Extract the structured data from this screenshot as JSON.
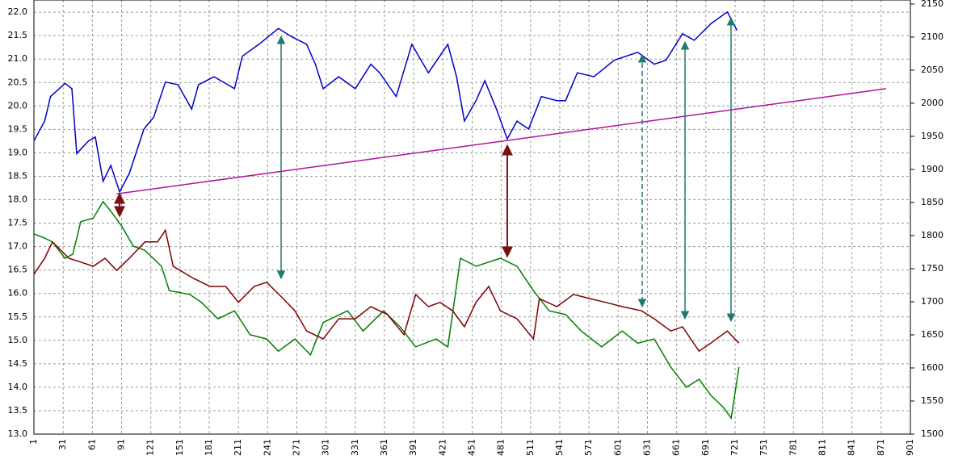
{
  "chart_data": {
    "type": "line",
    "xlim": [
      1,
      901
    ],
    "xticks": [
      1,
      31,
      61,
      91,
      121,
      151,
      181,
      211,
      241,
      271,
      301,
      331,
      361,
      391,
      421,
      451,
      481,
      511,
      541,
      571,
      601,
      631,
      661,
      691,
      721,
      751,
      781,
      811,
      841,
      871,
      901
    ],
    "ylim": [
      13,
      22.26
    ],
    "yticks": [
      {
        "value": 13,
        "label": "13.0"
      },
      13.5,
      {
        "value": 14,
        "label": "14.0"
      },
      14.5,
      {
        "value": 15,
        "label": "15.0"
      },
      15.5,
      {
        "value": 16,
        "label": "16.0"
      },
      16.5,
      {
        "value": 17,
        "label": "17.0"
      },
      17.5,
      {
        "value": 18,
        "label": "18.0"
      },
      18.5,
      {
        "value": 19,
        "label": "19.0"
      },
      19.5,
      {
        "value": 20,
        "label": "20.0"
      },
      20.5,
      {
        "value": 21,
        "label": "21.0"
      },
      21.5,
      {
        "value": 22,
        "label": "22.0"
      }
    ],
    "y2lim": [
      1500,
      2156
    ],
    "y2ticks": [
      1500,
      1550,
      1600,
      1650,
      1700,
      1750,
      1800,
      1850,
      1900,
      1950,
      2000,
      2050,
      2100,
      2150
    ],
    "grid": true,
    "series": [
      {
        "color": "#0000cc",
        "axis": "y2",
        "x": [
          1,
          12,
          18,
          33,
          40,
          45,
          57,
          64,
          72,
          80,
          89,
          99,
          114,
          124,
          136,
          149,
          163,
          170,
          186,
          207,
          215,
          232,
          252,
          265,
          281,
          290,
          298,
          314,
          331,
          347,
          356,
          373,
          389,
          406,
          426,
          435,
          443,
          455,
          464,
          476,
          487,
          497,
          509,
          522,
          538,
          547,
          559,
          576,
          597,
          621,
          638,
          650,
          667,
          679,
          696,
          713,
          723
        ],
        "values": [
          1943,
          1973,
          2010,
          2030,
          2022,
          1924,
          1943,
          1949,
          1882,
          1906,
          1866,
          1894,
          1961,
          1979,
          2032,
          2028,
          1991,
          2028,
          2040,
          2022,
          2071,
          2089,
          2113,
          2101,
          2089,
          2059,
          2022,
          2040,
          2022,
          2059,
          2046,
          2010,
          2089,
          2046,
          2089,
          2040,
          1973,
          2004,
          2034,
          1991,
          1946,
          1973,
          1961,
          2010,
          2004,
          2004,
          2046,
          2040,
          2065,
          2077,
          2059,
          2065,
          2105,
          2095,
          2120,
          2138,
          2110
        ]
      },
      {
        "color": "#008000",
        "axis": "y",
        "x": [
          1,
          12,
          20,
          33,
          41,
          49,
          62,
          72,
          82,
          91,
          103,
          115,
          132,
          140,
          161,
          173,
          190,
          207,
          223,
          240,
          252,
          269,
          285,
          298,
          323,
          339,
          360,
          377,
          393,
          414,
          426,
          439,
          455,
          468,
          480,
          497,
          514,
          530,
          547,
          563,
          584,
          605,
          621,
          638,
          655,
          671,
          684,
          696,
          709,
          717,
          725
        ],
        "values": [
          17.27,
          17.18,
          17.1,
          16.75,
          16.84,
          17.53,
          17.61,
          17.96,
          17.7,
          17.44,
          17.01,
          16.92,
          16.58,
          16.06,
          15.98,
          15.81,
          15.46,
          15.63,
          15.12,
          15.03,
          14.77,
          15.03,
          14.69,
          15.38,
          15.63,
          15.2,
          15.63,
          15.29,
          14.86,
          15.03,
          14.86,
          16.75,
          16.58,
          16.67,
          16.75,
          16.58,
          16.06,
          15.63,
          15.55,
          15.2,
          14.86,
          15.2,
          14.94,
          15.03,
          14.43,
          14.0,
          14.17,
          13.83,
          13.57,
          13.34,
          14.43
        ]
      },
      {
        "color": "#7f0000",
        "axis": "y",
        "x": [
          1,
          12,
          20,
          37,
          49,
          62,
          74,
          86,
          99,
          115,
          128,
          136,
          144,
          165,
          182,
          198,
          211,
          227,
          240,
          257,
          269,
          281,
          298,
          314,
          331,
          347,
          364,
          381,
          393,
          406,
          418,
          431,
          443,
          455,
          468,
          480,
          497,
          514,
          520,
          538,
          555,
          572,
          588,
          605,
          625,
          638,
          655,
          667,
          684,
          696,
          713,
          725
        ],
        "values": [
          16.41,
          16.75,
          17.1,
          16.75,
          16.67,
          16.58,
          16.75,
          16.49,
          16.75,
          17.1,
          17.1,
          17.35,
          16.58,
          16.32,
          16.15,
          16.15,
          15.81,
          16.15,
          16.24,
          15.89,
          15.63,
          15.2,
          15.03,
          15.46,
          15.46,
          15.72,
          15.55,
          15.12,
          15.98,
          15.72,
          15.81,
          15.63,
          15.29,
          15.81,
          16.15,
          15.63,
          15.46,
          15.03,
          15.89,
          15.72,
          15.98,
          15.89,
          15.81,
          15.72,
          15.63,
          15.46,
          15.2,
          15.29,
          14.77,
          14.94,
          15.2,
          14.94
        ]
      },
      {
        "color": "#b0139e",
        "axis": "y2",
        "x": [
          86,
          876
        ],
        "values": [
          1863,
          2022
        ]
      }
    ]
  }
}
